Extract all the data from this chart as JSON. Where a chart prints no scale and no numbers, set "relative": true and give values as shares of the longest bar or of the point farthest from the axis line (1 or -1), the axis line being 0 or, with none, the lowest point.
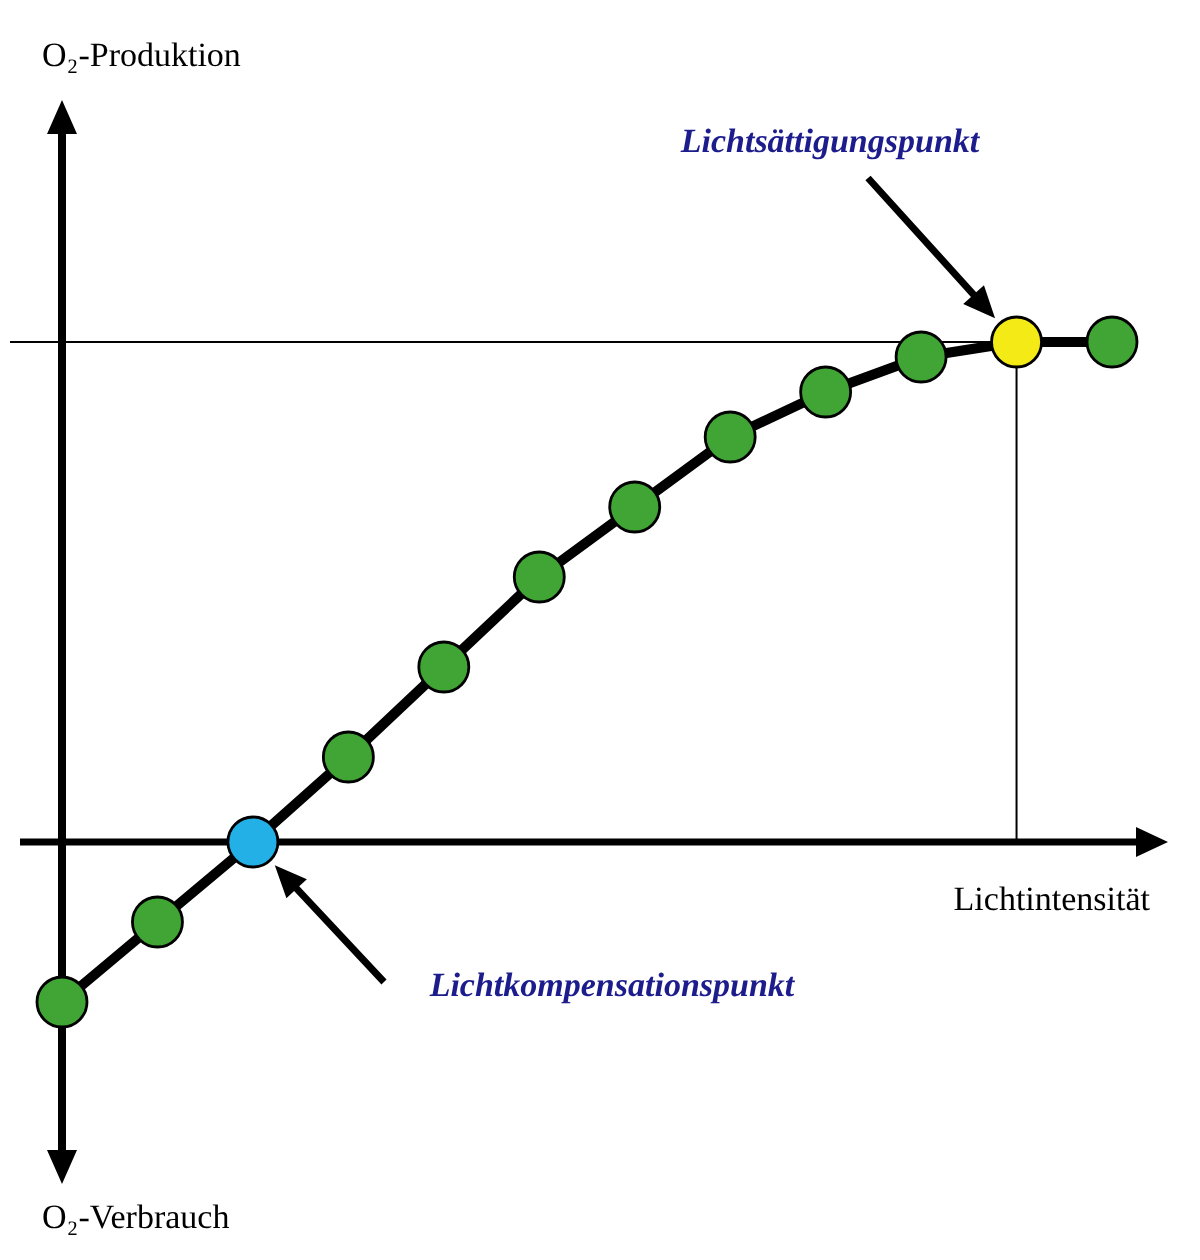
{
  "chart_data": {
    "type": "line",
    "relative": true,
    "xlabel": "Lichtintensität",
    "categories": [
      null,
      null,
      null,
      null,
      null,
      null,
      null,
      null,
      null,
      null,
      null,
      null
    ],
    "series": [
      {
        "color": "#000000",
        "colors": [
          "#40a535",
          "#40a535",
          "#22b0e6",
          "#40a535",
          "#40a535",
          "#40a535",
          "#40a535",
          "#40a535",
          "#40a535",
          "#40a535",
          "#f4ea16",
          "#40a535"
        ],
        "values": [
          -0.32,
          -0.16,
          0,
          0.17,
          0.35,
          0.53,
          0.67,
          0.81,
          0.9,
          0.97,
          1,
          1
        ]
      }
    ],
    "marker": "circle",
    "line_style": "solid",
    "ref_lines": [
      {
        "axis": "y",
        "value": 1
      }
    ],
    "annotations": [
      "Lichtsättigungspunkt",
      "Lichtkompensationspunkt",
      "O₂-Produktion",
      "O₂-Verbrauch"
    ]
  }
}
